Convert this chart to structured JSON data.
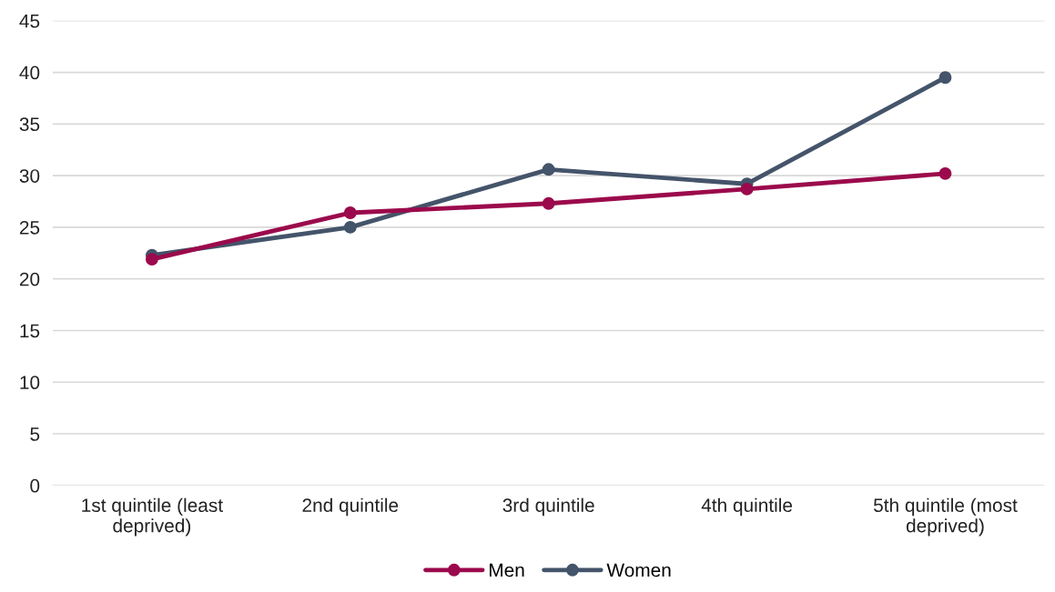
{
  "chart_data": {
    "type": "line",
    "categories": [
      "1st quintile (least\ndeprived)",
      "2nd quintile",
      "3rd quintile",
      "4th quintile",
      "5th quintile (most\ndeprived)"
    ],
    "series": [
      {
        "name": "Men",
        "color": "#9b0a4c",
        "values": [
          21.9,
          26.4,
          27.3,
          28.7,
          30.2
        ]
      },
      {
        "name": "Women",
        "color": "#44546a",
        "values": [
          22.3,
          25.0,
          30.6,
          29.2,
          39.5
        ]
      }
    ],
    "ylim": [
      0,
      45
    ],
    "yticks": [
      0,
      5,
      10,
      15,
      20,
      25,
      30,
      35,
      40,
      45
    ],
    "grid": "y",
    "legend": "bottom",
    "marker": "circle",
    "line_style": "solid"
  }
}
